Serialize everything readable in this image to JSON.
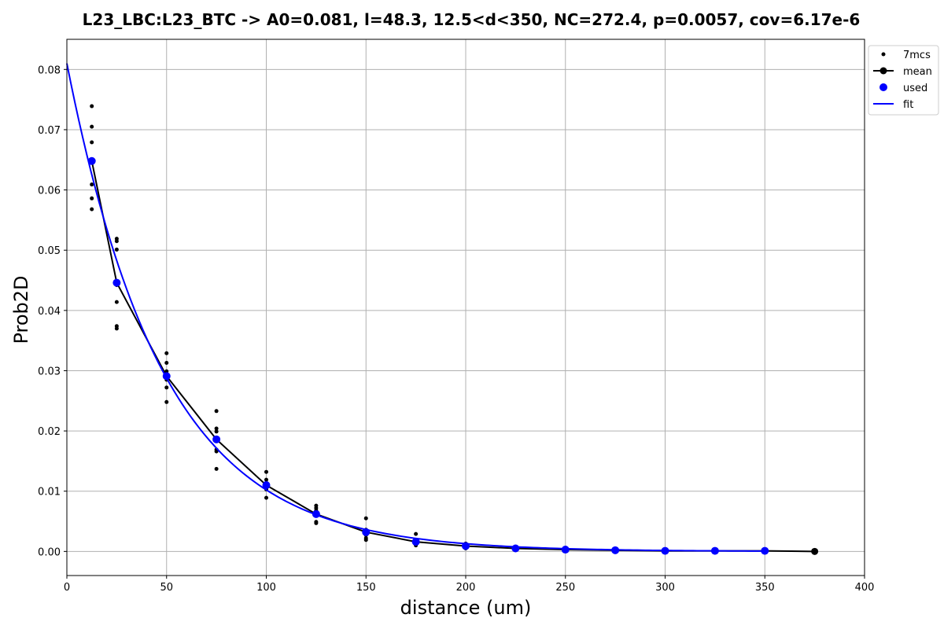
{
  "chart_data": {
    "type": "scatter",
    "title": "L23_LBC:L23_BTC -> A0=0.081, l=48.3, 12.5<d<350, NC=272.4, p=0.0057, cov=6.17e-6",
    "xlabel": "distance (um)",
    "ylabel": "Prob2D",
    "xlim": [
      0,
      400
    ],
    "ylim": [
      -0.004,
      0.085
    ],
    "xticks": [
      0,
      50,
      100,
      150,
      200,
      250,
      300,
      350,
      400
    ],
    "yticks": [
      0.0,
      0.01,
      0.02,
      0.03,
      0.04,
      0.05,
      0.06,
      0.07,
      0.08
    ],
    "xtick_labels": [
      "0",
      "50",
      "100",
      "150",
      "200",
      "250",
      "300",
      "350",
      "400"
    ],
    "ytick_labels": [
      "0.00",
      "0.01",
      "0.02",
      "0.03",
      "0.04",
      "0.05",
      "0.06",
      "0.07",
      "0.08"
    ],
    "grid": true,
    "legend_position": "outside-top-right",
    "colors": {
      "points": "#000000",
      "mean": "#000000",
      "used": "#0000ff",
      "fit": "#0000ff"
    },
    "series": [
      {
        "name": "7mcs",
        "kind": "points",
        "x": [
          12.5,
          12.5,
          12.5,
          12.5,
          12.5,
          12.5,
          12.5,
          25,
          25,
          25,
          25,
          25,
          25,
          25,
          50,
          50,
          50,
          50,
          50,
          50,
          50,
          75,
          75,
          75,
          75,
          75,
          75,
          75,
          100,
          100,
          100,
          100,
          100,
          100,
          100,
          125,
          125,
          125,
          125,
          125,
          125,
          125,
          150,
          150,
          150,
          150,
          150,
          150,
          150,
          175,
          175,
          175,
          175,
          175,
          175,
          175,
          200,
          200,
          200,
          200,
          200,
          200,
          200,
          225,
          225,
          225,
          225,
          225,
          225,
          225,
          250,
          250,
          250,
          250,
          250,
          250,
          250,
          275,
          275,
          275,
          275,
          275,
          275,
          275,
          300,
          300,
          300,
          300,
          300,
          300,
          300,
          325,
          325,
          325,
          325,
          325,
          325,
          325,
          350,
          350,
          350,
          350,
          350,
          350,
          350
        ],
        "y": [
          0.0739,
          0.0705,
          0.0679,
          0.0651,
          0.0609,
          0.0586,
          0.0568,
          0.0519,
          0.0515,
          0.0501,
          0.0442,
          0.0414,
          0.0374,
          0.037,
          0.0329,
          0.0313,
          0.0299,
          0.0285,
          0.0272,
          0.0248,
          0.029,
          0.0233,
          0.0204,
          0.0199,
          0.0169,
          0.0166,
          0.0137,
          0.0188,
          0.0132,
          0.0119,
          0.0114,
          0.0106,
          0.0103,
          0.0089,
          0.011,
          0.0076,
          0.0072,
          0.0068,
          0.0061,
          0.0049,
          0.0047,
          0.0063,
          0.0055,
          0.0036,
          0.0031,
          0.0027,
          0.0022,
          0.0019,
          0.0033,
          0.0029,
          0.0019,
          0.0017,
          0.0014,
          0.0012,
          0.001,
          0.0016,
          0.0013,
          0.0011,
          0.0009,
          0.0008,
          0.0007,
          0.0005,
          0.001,
          0.0007,
          0.0006,
          0.0005,
          0.0005,
          0.0004,
          0.0004,
          0.0005,
          0.0005,
          0.0004,
          0.0003,
          0.0003,
          0.0002,
          0.0002,
          0.0003,
          0.0003,
          0.0002,
          0.0002,
          0.0002,
          0.0001,
          0.0001,
          0.0002,
          0.0002,
          0.0002,
          0.0001,
          0.0001,
          0.0001,
          0.0001,
          0.0001,
          0.0002,
          0.0001,
          0.0001,
          0.0001,
          0.0001,
          0.0,
          0.0001,
          0.0001,
          0.0001,
          0.0001,
          0.0,
          0.0,
          0.0,
          0.0001
        ]
      },
      {
        "name": "mean",
        "kind": "line-marker",
        "x": [
          12.5,
          25,
          50,
          75,
          100,
          125,
          150,
          175,
          200,
          225,
          250,
          275,
          300,
          325,
          350,
          375
        ],
        "y": [
          0.0648,
          0.0446,
          0.0291,
          0.0186,
          0.011,
          0.0062,
          0.0032,
          0.0016,
          0.0009,
          0.0005,
          0.0003,
          0.0002,
          0.0001,
          0.0001,
          0.0001,
          0.0
        ]
      },
      {
        "name": "used",
        "kind": "points",
        "x": [
          12.5,
          25,
          50,
          75,
          100,
          125,
          150,
          175,
          200,
          225,
          250,
          275,
          300,
          325,
          350
        ],
        "y": [
          0.0648,
          0.0446,
          0.0291,
          0.0186,
          0.011,
          0.0062,
          0.0032,
          0.0016,
          0.0009,
          0.0005,
          0.0003,
          0.0002,
          0.0001,
          0.0001,
          0.0001
        ]
      },
      {
        "name": "fit",
        "kind": "line",
        "A0": 0.081,
        "l": 48.3,
        "x_range": [
          0,
          350
        ]
      }
    ]
  }
}
